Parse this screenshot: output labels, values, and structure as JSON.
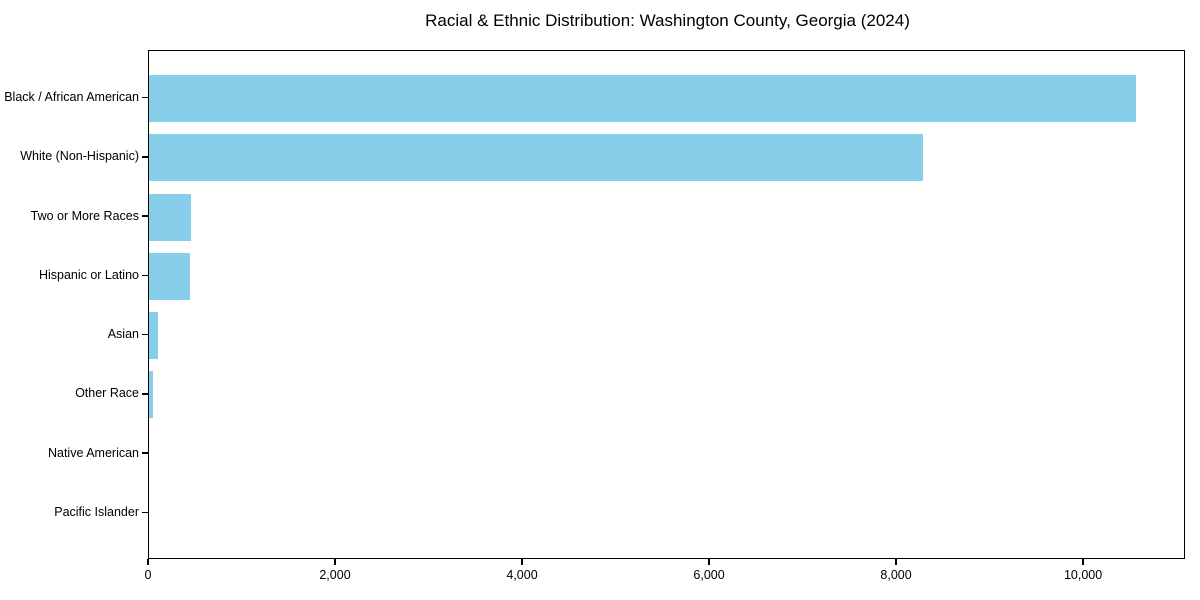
{
  "chart_data": {
    "type": "bar",
    "orientation": "horizontal",
    "title": "Racial & Ethnic Distribution: Washington County, Georgia (2024)",
    "categories": [
      "Black / African American",
      "White (Non-Hispanic)",
      "Two or More Races",
      "Hispanic or Latino",
      "Asian",
      "Other Race",
      "Native American",
      "Pacific Islander"
    ],
    "values": [
      10560,
      8280,
      450,
      440,
      100,
      45,
      0,
      0
    ],
    "xlabel": "",
    "ylabel": "",
    "xlim": [
      0,
      11090
    ],
    "x_ticks": [
      0,
      2000,
      4000,
      6000,
      8000,
      10000
    ],
    "x_tick_labels": [
      "0",
      "2,000",
      "4,000",
      "6,000",
      "8,000",
      "10,000"
    ],
    "grid": false,
    "legend": null,
    "bar_color": "#87CEEB",
    "axis_color": "#000000",
    "text_color": "#000000",
    "background_color": "#FFFFFF"
  }
}
